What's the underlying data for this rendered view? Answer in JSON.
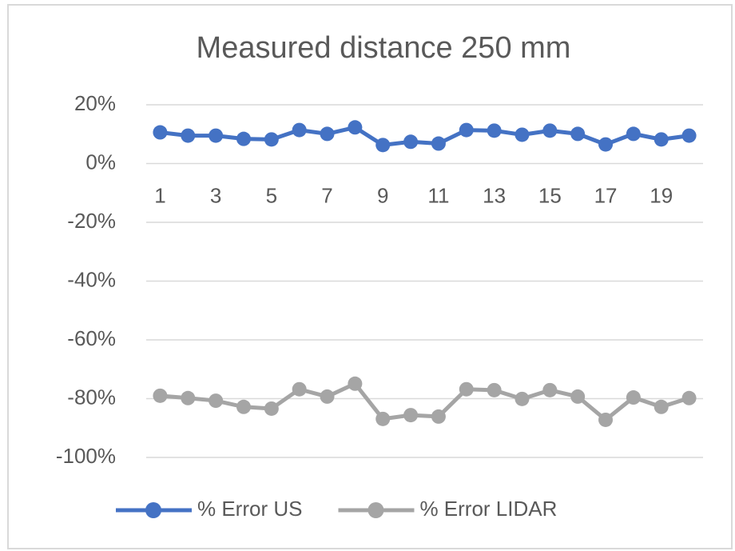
{
  "chart_data": {
    "type": "line",
    "title": "Measured distance 250 mm",
    "categories": [
      "1",
      null,
      "3",
      null,
      "5",
      null,
      "7",
      null,
      "9",
      null,
      "11",
      null,
      "13",
      null,
      "15",
      null,
      "17",
      null,
      "19",
      null
    ],
    "series": [
      {
        "name": "% Error US",
        "color": "#4472c4",
        "values": [
          10.6,
          9.5,
          9.5,
          8.4,
          8.2,
          11.4,
          10.1,
          12.3,
          6.3,
          7.4,
          6.8,
          11.4,
          11.2,
          9.8,
          11.2,
          10.1,
          6.5,
          10.1,
          8.2,
          9.5
        ]
      },
      {
        "name": "% Error LIDAR",
        "color": "#a5a5a5",
        "values": [
          -79.0,
          -79.8,
          -80.7,
          -82.8,
          -83.4,
          -76.8,
          -79.3,
          -74.9,
          -86.9,
          -85.6,
          -86.1,
          -76.8,
          -77.1,
          -80.1,
          -77.1,
          -79.3,
          -87.2,
          -79.6,
          -82.8,
          -79.8
        ]
      }
    ],
    "ylim": [
      -100,
      20
    ],
    "yticks": [
      {
        "value": 20,
        "label": "20%"
      },
      {
        "value": 0,
        "label": "0%"
      },
      {
        "value": -20,
        "label": "-20%"
      },
      {
        "value": -40,
        "label": "-40%"
      },
      {
        "value": -60,
        "label": "-60%"
      },
      {
        "value": -80,
        "label": "-80%"
      },
      {
        "value": -100,
        "label": "-100%"
      }
    ],
    "grid": true,
    "legend": "bottom"
  }
}
